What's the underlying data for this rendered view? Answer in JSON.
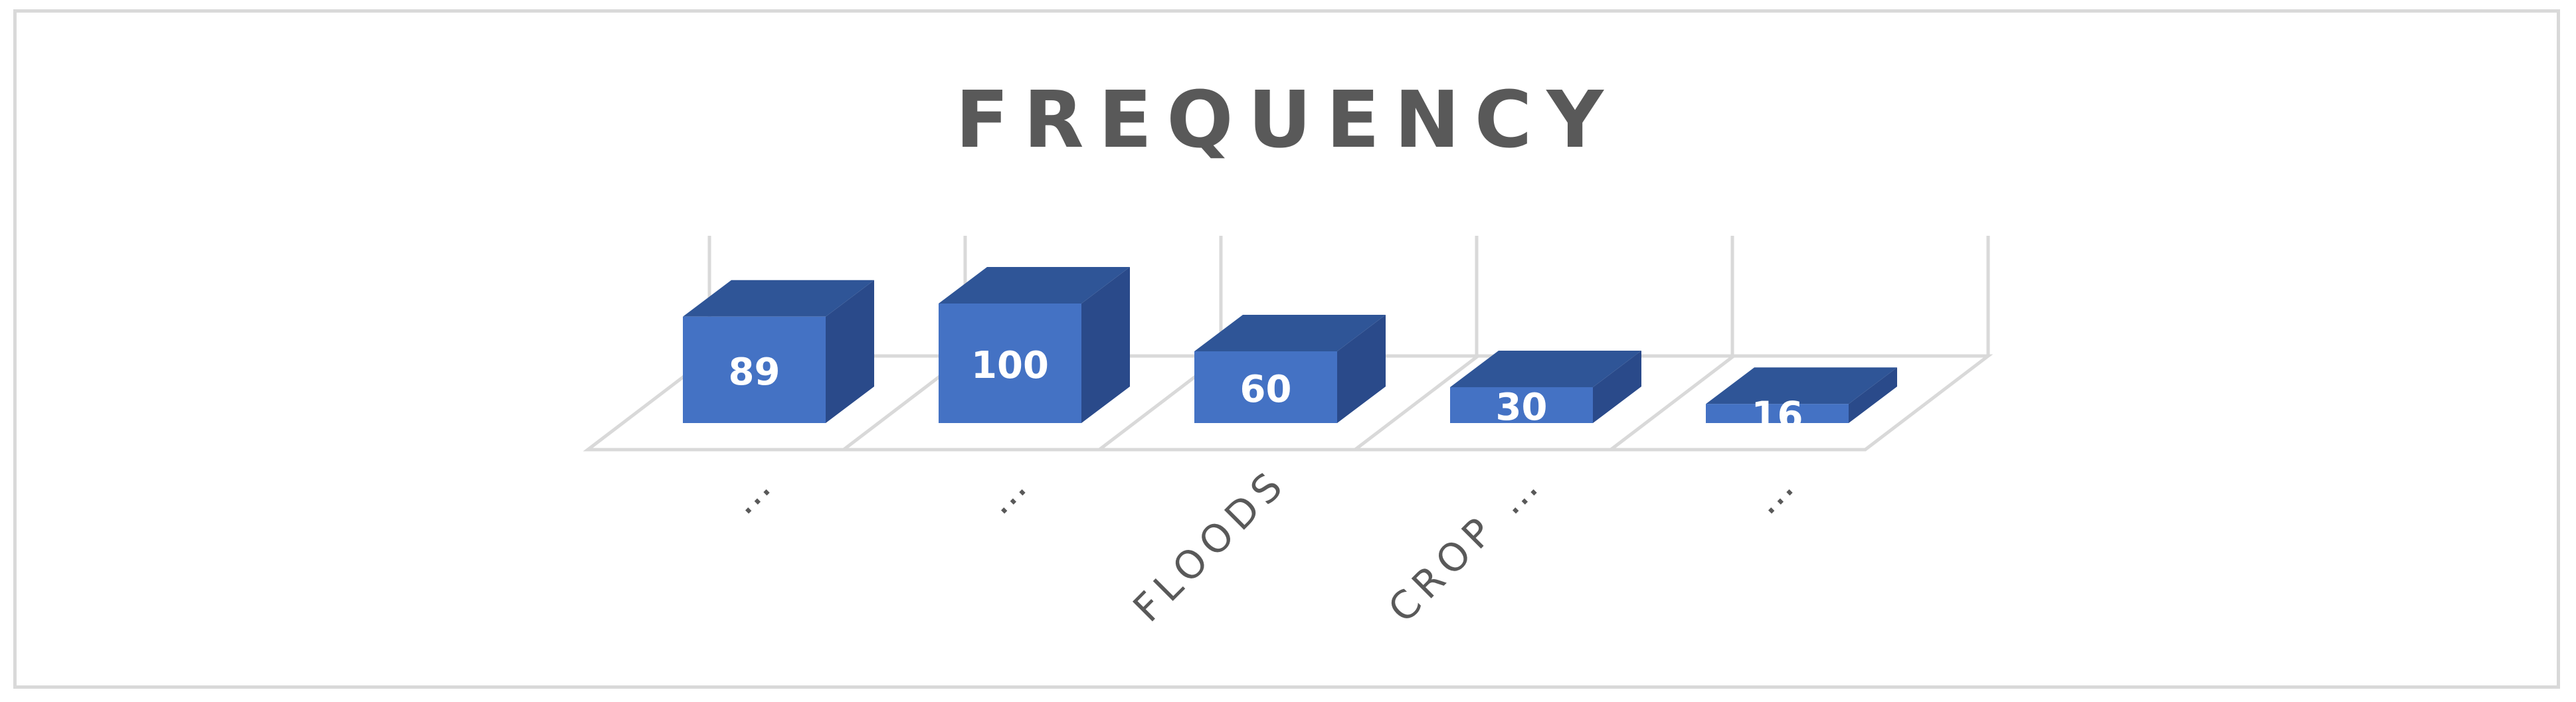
{
  "chart_data": {
    "type": "bar",
    "title": "FREQUENCY",
    "categories": [
      "…",
      "…",
      "FLOODS",
      "CROP …",
      "…"
    ],
    "values": [
      89,
      100,
      60,
      30,
      16
    ],
    "data_labels": [
      "89",
      "100",
      "60",
      "30",
      "16"
    ],
    "xlabel": "",
    "ylabel": "",
    "ylim": [
      0,
      100
    ],
    "grid": false,
    "legend": "none",
    "style": "3d-clustered-column",
    "colors": {
      "bar_front": "#4472C4",
      "bar_top": "#2F5597",
      "bar_side": "#2A4A8A",
      "floor": "#d9d9d9",
      "title": "#595959",
      "tick_label": "#595959",
      "data_label": "#ffffff"
    }
  }
}
